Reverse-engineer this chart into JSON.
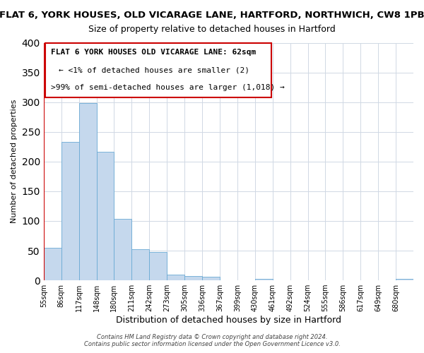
{
  "title": "FLAT 6, YORK HOUSES, OLD VICARAGE LANE, HARTFORD, NORTHWICH, CW8 1PB",
  "subtitle": "Size of property relative to detached houses in Hartford",
  "xlabel": "Distribution of detached houses by size in Hartford",
  "ylabel": "Number of detached properties",
  "bar_color": "#c5d8ed",
  "bar_edge_color": "#6aaad4",
  "annotation_line_color": "#cc0000",
  "bin_labels": [
    "55sqm",
    "86sqm",
    "117sqm",
    "148sqm",
    "180sqm",
    "211sqm",
    "242sqm",
    "273sqm",
    "305sqm",
    "336sqm",
    "367sqm",
    "399sqm",
    "430sqm",
    "461sqm",
    "492sqm",
    "524sqm",
    "555sqm",
    "586sqm",
    "617sqm",
    "649sqm",
    "680sqm"
  ],
  "bar_values": [
    55,
    233,
    298,
    216,
    103,
    52,
    48,
    10,
    7,
    6,
    0,
    0,
    3,
    0,
    0,
    0,
    0,
    0,
    0,
    0,
    3
  ],
  "ylim": [
    0,
    400
  ],
  "yticks": [
    0,
    50,
    100,
    150,
    200,
    250,
    300,
    350,
    400
  ],
  "annotation_text_line1": "FLAT 6 YORK HOUSES OLD VICARAGE LANE: 62sqm",
  "annotation_text_line2": "← <1% of detached houses are smaller (2)",
  "annotation_text_line3": ">99% of semi-detached houses are larger (1,018) →",
  "footer_line1": "Contains HM Land Registry data © Crown copyright and database right 2024.",
  "footer_line2": "Contains public sector information licensed under the Open Government Licence v3.0.",
  "background_color": "#ffffff",
  "grid_color": "#d0d8e4",
  "title_fontsize": 9.5,
  "subtitle_fontsize": 9,
  "xlabel_fontsize": 9,
  "ylabel_fontsize": 8,
  "tick_fontsize": 7,
  "ann_fontsize": 8,
  "footer_fontsize": 6
}
